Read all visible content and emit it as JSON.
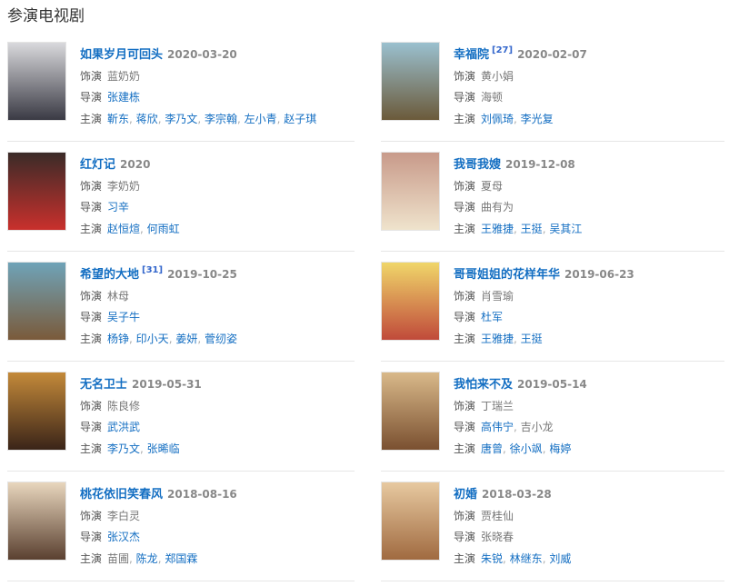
{
  "heading": "参演电视剧",
  "labels": {
    "role": "饰演",
    "director": "导演",
    "cast": "主演"
  },
  "items": [
    {
      "title": "如果岁月可回头",
      "ref": "",
      "date": "2020-03-20",
      "role": "蓝奶奶",
      "directors": [
        {
          "name": "张建栋",
          "link": true
        }
      ],
      "cast": [
        {
          "name": "靳东",
          "link": true
        },
        {
          "name": "蒋欣",
          "link": true
        },
        {
          "name": "李乃文",
          "link": true
        },
        {
          "name": "李宗翰",
          "link": true
        },
        {
          "name": "左小青",
          "link": true
        },
        {
          "name": "赵子琪",
          "link": true
        }
      ],
      "poster_colors": [
        "#d9d9dc",
        "#3a3a44"
      ]
    },
    {
      "title": "幸福院",
      "ref": "[27]",
      "date": "2020-02-07",
      "role": "黄小娟",
      "directors": [
        {
          "name": "海顿",
          "link": false
        }
      ],
      "cast": [
        {
          "name": "刘佩琦",
          "link": true
        },
        {
          "name": "李光复",
          "link": true
        }
      ],
      "poster_colors": [
        "#9ac0cf",
        "#6b5a3a"
      ]
    },
    {
      "title": "红灯记",
      "ref": "",
      "date": "2020",
      "role": "李奶奶",
      "directors": [
        {
          "name": "习辛",
          "link": true
        }
      ],
      "cast": [
        {
          "name": "赵恒煊",
          "link": true
        },
        {
          "name": "何雨虹",
          "link": true
        }
      ],
      "poster_colors": [
        "#3a2b28",
        "#c9302c"
      ]
    },
    {
      "title": "我哥我嫂",
      "ref": "",
      "date": "2019-12-08",
      "role": "夏母",
      "directors": [
        {
          "name": "曲有为",
          "link": false
        }
      ],
      "cast": [
        {
          "name": "王雅捷",
          "link": true
        },
        {
          "name": "王挺",
          "link": true
        },
        {
          "name": "吴其江",
          "link": true
        }
      ],
      "poster_colors": [
        "#c89a8a",
        "#efe3cc"
      ]
    },
    {
      "title": "希望的大地",
      "ref": "[31]",
      "date": "2019-10-25",
      "role": "林母",
      "directors": [
        {
          "name": "吴子牛",
          "link": true
        }
      ],
      "cast": [
        {
          "name": "杨铮",
          "link": true
        },
        {
          "name": "印小天",
          "link": true
        },
        {
          "name": "姜妍",
          "link": true
        },
        {
          "name": "菅纫姿",
          "link": true
        }
      ],
      "poster_colors": [
        "#6fa3b8",
        "#7a5a3a"
      ]
    },
    {
      "title": "哥哥姐姐的花样年华",
      "ref": "",
      "date": "2019-06-23",
      "role": "肖雪瑜",
      "directors": [
        {
          "name": "杜军",
          "link": true
        }
      ],
      "cast": [
        {
          "name": "王雅捷",
          "link": true
        },
        {
          "name": "王挺",
          "link": true
        }
      ],
      "poster_colors": [
        "#f0d66a",
        "#c04a3a"
      ]
    },
    {
      "title": "无名卫士",
      "ref": "",
      "date": "2019-05-31",
      "role": "陈良修",
      "directors": [
        {
          "name": "武洪武",
          "link": true
        }
      ],
      "cast": [
        {
          "name": "李乃文",
          "link": true
        },
        {
          "name": "张晞临",
          "link": true
        }
      ],
      "poster_colors": [
        "#c48a3a",
        "#3a2418"
      ]
    },
    {
      "title": "我怕来不及",
      "ref": "",
      "date": "2019-05-14",
      "role": "丁瑞兰",
      "directors": [
        {
          "name": "高伟宁",
          "link": true
        },
        {
          "name": "吉小龙",
          "link": false
        }
      ],
      "cast": [
        {
          "name": "唐曾",
          "link": true
        },
        {
          "name": "徐小飒",
          "link": true
        },
        {
          "name": "梅婷",
          "link": true
        }
      ],
      "poster_colors": [
        "#d9b98a",
        "#7a5030"
      ]
    },
    {
      "title": "桃花依旧笑春风",
      "ref": "",
      "date": "2018-08-16",
      "role": "李白灵",
      "directors": [
        {
          "name": "张汉杰",
          "link": true
        }
      ],
      "cast": [
        {
          "name": "苗圃",
          "link": false
        },
        {
          "name": "陈龙",
          "link": true
        },
        {
          "name": "郑国霖",
          "link": true
        }
      ],
      "poster_colors": [
        "#e8d6bd",
        "#5a4030"
      ]
    },
    {
      "title": "初婚",
      "ref": "",
      "date": "2018-03-28",
      "role": "贾桂仙",
      "directors": [
        {
          "name": "张晓春",
          "link": false
        }
      ],
      "cast": [
        {
          "name": "朱锐",
          "link": true
        },
        {
          "name": "林继东",
          "link": true
        },
        {
          "name": "刘威",
          "link": true
        }
      ],
      "poster_colors": [
        "#e7c9a0",
        "#a06a40"
      ]
    }
  ]
}
